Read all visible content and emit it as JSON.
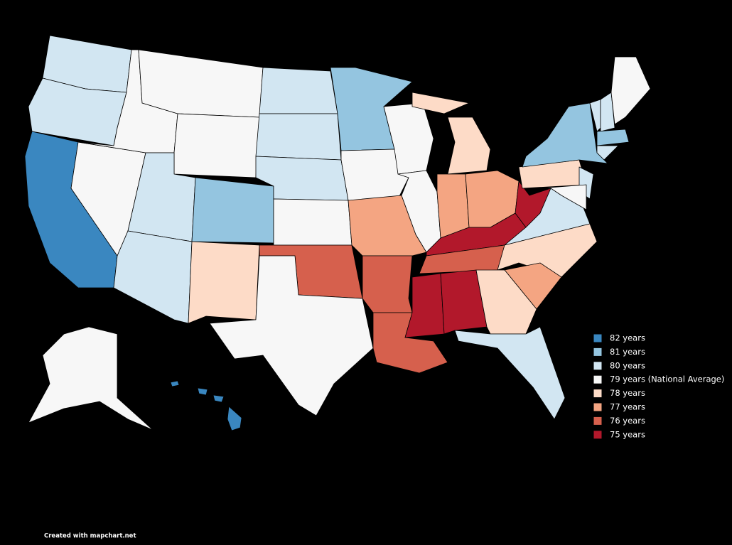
{
  "legend": {
    "items": [
      {
        "label": "82 years",
        "color": "#3a87c0"
      },
      {
        "label": "81 years",
        "color": "#94c5e0"
      },
      {
        "label": "80 years",
        "color": "#d2e6f2"
      },
      {
        "label": "79 years (National Average)",
        "color": "#f7f7f7"
      },
      {
        "label": "78 years",
        "color": "#fddbc7"
      },
      {
        "label": "77 years",
        "color": "#f4a582"
      },
      {
        "label": "76 years",
        "color": "#d6604d"
      },
      {
        "label": "75 years",
        "color": "#b2182b"
      }
    ]
  },
  "credit": "Created with mapchart.net"
}
